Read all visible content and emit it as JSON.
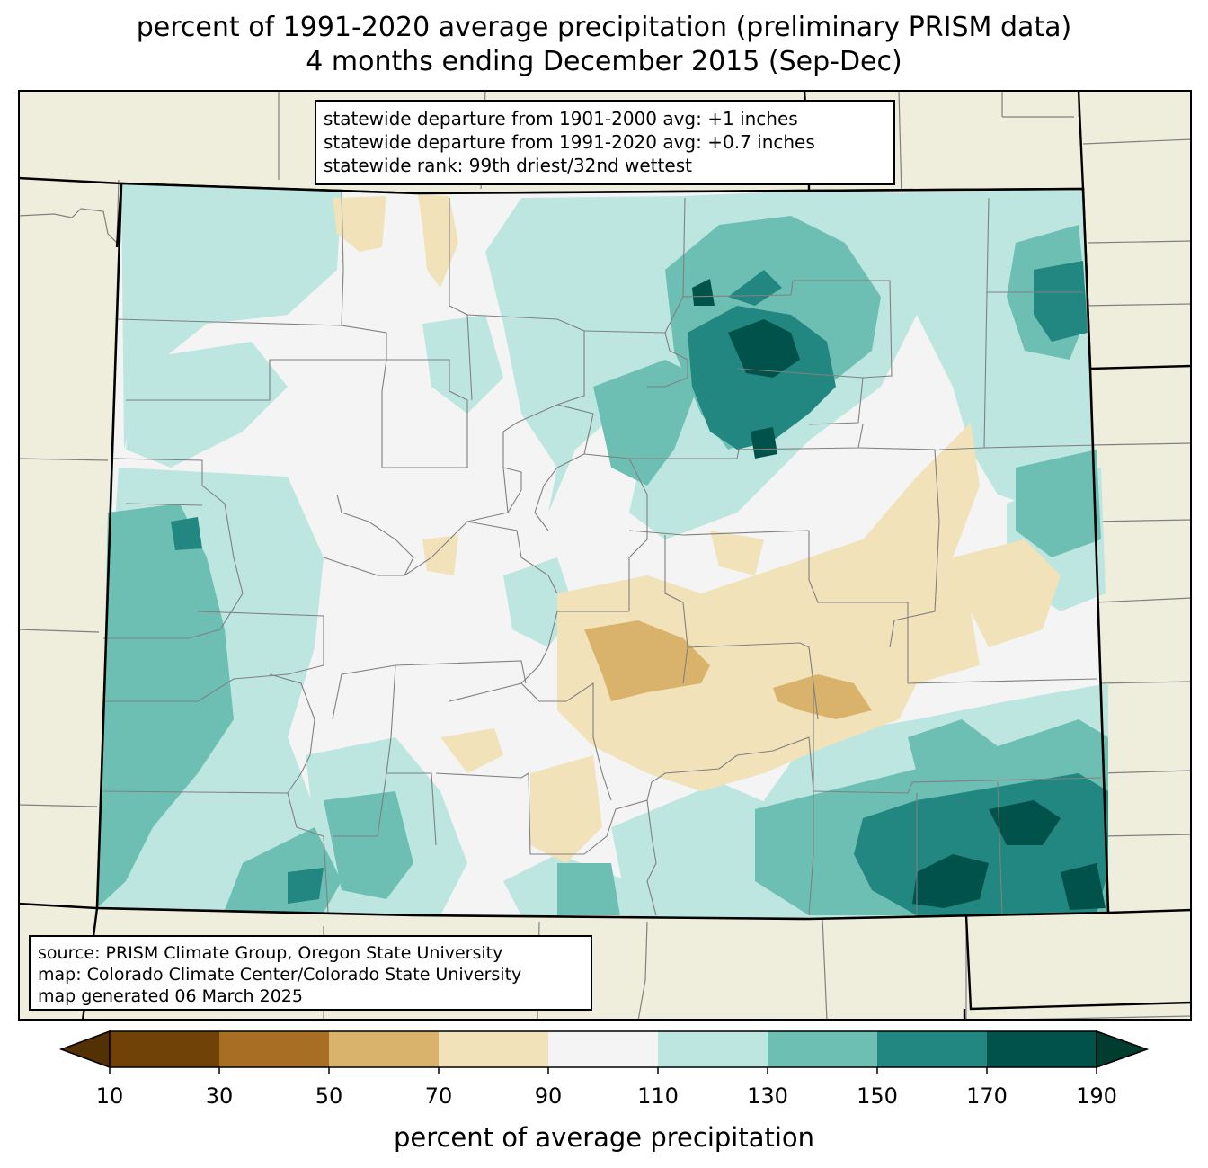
{
  "title": {
    "line1": "percent of 1991-2020 average precipitation (preliminary PRISM data)",
    "line2": "4 months ending December 2015 (Sep-Dec)"
  },
  "stats": {
    "line1": "statewide departure from 1901-2000 avg: +1 inches",
    "line2": "statewide departure from 1991-2020 avg: +0.7 inches",
    "line3": "statewide rank: 99th driest/32nd wettest"
  },
  "source": {
    "line1": "source: PRISM Climate Group, Oregon State University",
    "line2": "map: Colorado Climate Center/Colorado State University",
    "line3": "map generated 06 March 2025"
  },
  "colorbar": {
    "title": "percent of average precipitation",
    "ticks": [
      "10",
      "30",
      "50",
      "70",
      "90",
      "110",
      "130",
      "150",
      "170",
      "190"
    ],
    "under_color": "#543005",
    "over_color": "#003c30",
    "bins": [
      {
        "from": 10,
        "to": 30,
        "color": "#704208"
      },
      {
        "from": 30,
        "to": 50,
        "color": "#a86e23"
      },
      {
        "from": 50,
        "to": 70,
        "color": "#d9b36b"
      },
      {
        "from": 70,
        "to": 90,
        "color": "#f2e2ba"
      },
      {
        "from": 90,
        "to": 110,
        "color": "#f3f4f3"
      },
      {
        "from": 110,
        "to": 130,
        "color": "#bde6e0"
      },
      {
        "from": 130,
        "to": 150,
        "color": "#6ebfb3"
      },
      {
        "from": 150,
        "to": 170,
        "color": "#228780"
      },
      {
        "from": 170,
        "to": 190,
        "color": "#01524a"
      }
    ]
  },
  "map": {
    "background_color": "#efeedc",
    "border_color": "#000000",
    "county_line_color": "#808080"
  }
}
